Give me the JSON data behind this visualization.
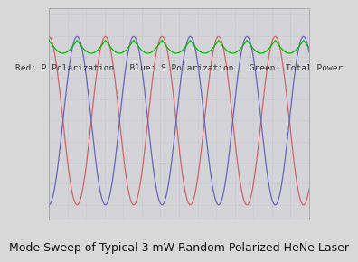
{
  "title": "Mode Sweep of Typical 3 mW Random Polarized HeNe Laser",
  "legend_text": "Red: P Polarization   Blue: S Polarization   Green: Total Power",
  "background_color": "#d8d8d8",
  "plot_bg_color": "#d4d4d8",
  "grid_color": "#b8b8c8",
  "red_color": "#cc6666",
  "blue_color": "#6666bb",
  "green_color": "#00bb00",
  "num_cycles": 4.6,
  "n_points": 2000,
  "title_fontsize": 9.0,
  "legend_fontsize": 6.8,
  "green_mean": 0.88,
  "green_ripple": 0.07,
  "red_mean": 0.45,
  "red_amp": 0.45,
  "blue_mean": 0.45,
  "blue_amp": 0.45,
  "red_phase": 0.0,
  "blue_phase": 3.14159,
  "ylim": [
    -0.08,
    1.05
  ],
  "grid_nx": 14,
  "grid_ny": 10
}
